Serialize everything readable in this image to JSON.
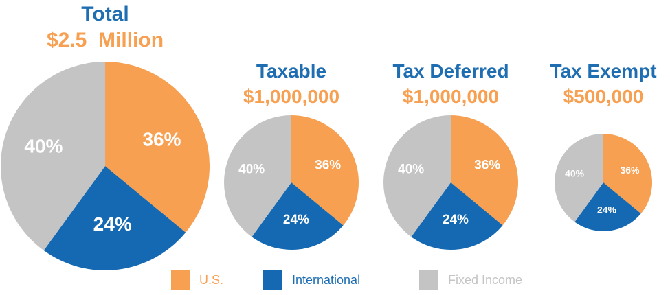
{
  "colors": {
    "us": "#f7a052",
    "international": "#1469b2",
    "fixed_income": "#c4c4c4",
    "title": "#1f6eb2",
    "amount": "#f7a052",
    "legend_text_us": "#f7a052",
    "legend_text_international": "#1f6eb2",
    "legend_text_fixed_income": "#c4c4c4"
  },
  "chart_data": [
    {
      "type": "pie",
      "title": "Total",
      "subtitle": "$2.5  Million",
      "categories": [
        "U.S.",
        "International",
        "Fixed Income"
      ],
      "values": [
        36,
        24,
        40
      ],
      "labels": [
        "36%",
        "24%",
        "40%"
      ]
    },
    {
      "type": "pie",
      "title": "Taxable",
      "subtitle": "$1,000,000",
      "categories": [
        "U.S.",
        "International",
        "Fixed Income"
      ],
      "values": [
        36,
        24,
        40
      ],
      "labels": [
        "36%",
        "24%",
        "40%"
      ]
    },
    {
      "type": "pie",
      "title": "Tax Deferred",
      "subtitle": "$1,000,000",
      "categories": [
        "U.S.",
        "International",
        "Fixed Income"
      ],
      "values": [
        36,
        24,
        40
      ],
      "labels": [
        "36%",
        "24%",
        "40%"
      ]
    },
    {
      "type": "pie",
      "title": "Tax Exempt",
      "subtitle": "$500,000",
      "categories": [
        "U.S.",
        "International",
        "Fixed Income"
      ],
      "values": [
        36,
        24,
        40
      ],
      "labels": [
        "36%",
        "24%",
        "40%"
      ]
    }
  ],
  "legend": {
    "items": [
      {
        "label": "U.S."
      },
      {
        "label": "International"
      },
      {
        "label": "Fixed Income"
      }
    ]
  }
}
